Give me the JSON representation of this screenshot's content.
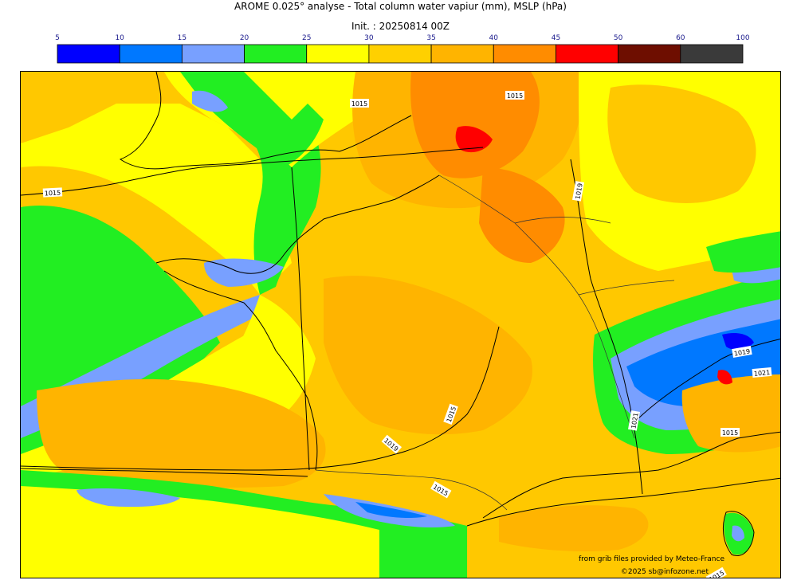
{
  "header": {
    "title": "AROME 0.025° analyse - Total column water vapiur (mm), MSLP (hPa)",
    "subtitle": "Init. : 20250814 00Z"
  },
  "legend": {
    "ticks": [
      "5",
      "10",
      "15",
      "20",
      "25",
      "30",
      "35",
      "40",
      "45",
      "50",
      "60",
      "100"
    ],
    "colors": [
      "#0000ff",
      "#0078ff",
      "#78a0ff",
      "#22ee22",
      "#ffff00",
      "#ffd000",
      "#ffb400",
      "#ff8c00",
      "#ff0000",
      "#6e0e00",
      "#3a3a3a"
    ]
  },
  "map": {
    "isobar_labels": [
      "1015",
      "1015",
      "1019",
      "1015",
      "1019",
      "1015",
      "1019",
      "1021",
      "1015",
      "1015",
      "1021",
      "1015"
    ]
  },
  "credits": {
    "source": "from grib files provided by Meteo-France",
    "copyright": "©2025 sb@infozone.net"
  }
}
